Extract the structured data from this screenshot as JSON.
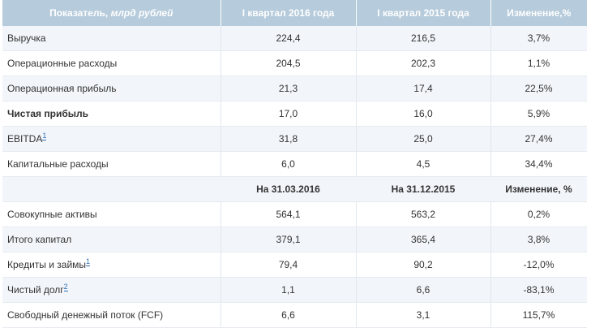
{
  "header": {
    "indicator": "Показатель,",
    "unit": "млрд рублей",
    "col1": "I квартал 2016 года",
    "col2": "I квартал 2015 года",
    "col3": "Изменение,%"
  },
  "rows_top": [
    {
      "label": "Выручка",
      "v1": "224,4",
      "v2": "216,5",
      "v3": "3,7%",
      "bold": false,
      "fn": ""
    },
    {
      "label": "Операционные расходы",
      "v1": "204,5",
      "v2": "202,3",
      "v3": "1,1%",
      "bold": false,
      "fn": ""
    },
    {
      "label": "Операционная прибыль",
      "v1": "21,3",
      "v2": "17,4",
      "v3": "22,5%",
      "bold": false,
      "fn": ""
    },
    {
      "label": "Чистая прибыль",
      "v1": "17,0",
      "v2": "16,0",
      "v3": "5,9%",
      "bold": true,
      "fn": ""
    },
    {
      "label": "EBITDA",
      "v1": "31,8",
      "v2": "25,0",
      "v3": "27,4%",
      "bold": false,
      "fn": "1"
    },
    {
      "label": "Капитальные расходы",
      "v1": "6,0",
      "v2": "4,5",
      "v3": "34,4%",
      "bold": false,
      "fn": ""
    }
  ],
  "subheader": {
    "col1": "На 31.03.2016",
    "col2": "На 31.12.2015",
    "col3": "Изменение, %"
  },
  "rows_bottom": [
    {
      "label": "Совокупные активы",
      "v1": "564,1",
      "v2": "563,2",
      "v3": "0,2%",
      "bold": false,
      "fn": ""
    },
    {
      "label": "Итого капитал",
      "v1": "379,1",
      "v2": "365,4",
      "v3": "3,8%",
      "bold": false,
      "fn": ""
    },
    {
      "label": "Кредиты и займы",
      "v1": "79,4",
      "v2": "90,2",
      "v3": "-12,0%",
      "bold": false,
      "fn": "1"
    },
    {
      "label": "Чистый долг",
      "v1": "1,1",
      "v2": "6,6",
      "v3": "-83,1%",
      "bold": false,
      "fn": "2"
    },
    {
      "label": "Свободный денежный поток (FCF)",
      "v1": "6,6",
      "v2": "3,1",
      "v3": "115,7%",
      "bold": false,
      "fn": ""
    }
  ]
}
